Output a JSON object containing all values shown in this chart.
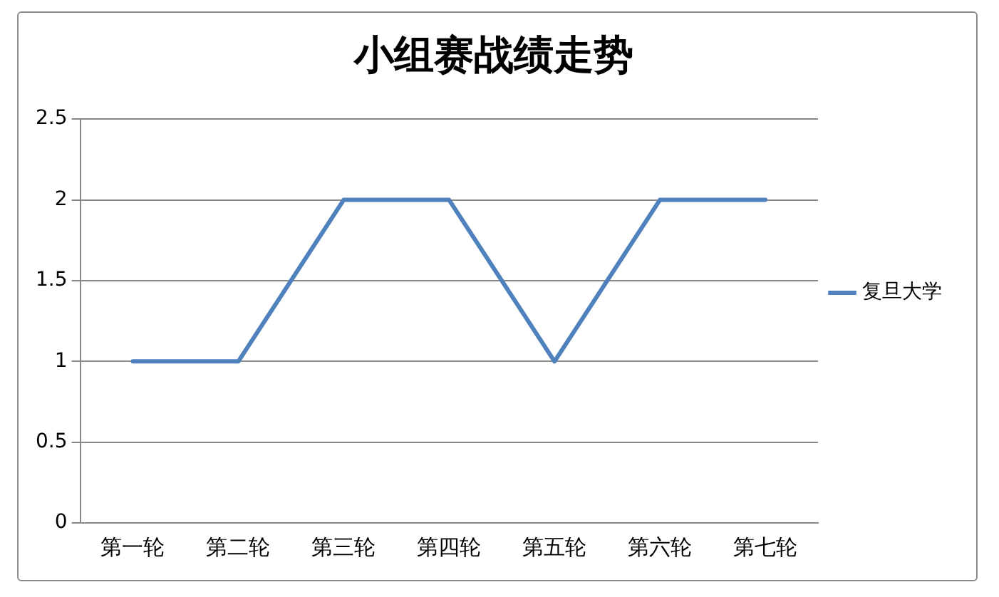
{
  "chart_data": {
    "type": "line",
    "title": "小组赛战绩走势",
    "categories": [
      "第一轮",
      "第二轮",
      "第三轮",
      "第四轮",
      "第五轮",
      "第六轮",
      "第七轮"
    ],
    "series": [
      {
        "name": "复旦大学",
        "color": "#4f81bd",
        "values": [
          1,
          1,
          2,
          2,
          1,
          2,
          2
        ]
      }
    ],
    "ylim": [
      0,
      2.5
    ],
    "yticks": [
      0,
      0.5,
      1,
      1.5,
      2,
      2.5
    ],
    "grid": "y",
    "legend": "right",
    "marker": "none",
    "line_style": "solid"
  }
}
